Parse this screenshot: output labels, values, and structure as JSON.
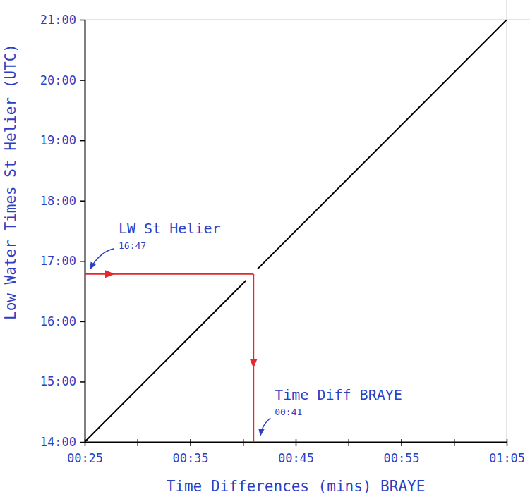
{
  "chart_data": {
    "type": "line",
    "xlabel": "Time Differences (mins) BRAYE",
    "ylabel": "Low Water Times St Helier (UTC)",
    "x": [
      25,
      40.3,
      40.9,
      41.4,
      65
    ],
    "values": [
      840,
      1000.7,
      null,
      1012.2,
      1260
    ],
    "color": "#000000",
    "xlim": [
      25,
      65
    ],
    "xticks": [
      {
        "value": 25,
        "label": "00:25"
      },
      {
        "value": 30,
        "label": null
      },
      {
        "value": 35,
        "label": "00:35"
      },
      {
        "value": 40,
        "label": null
      },
      {
        "value": 45,
        "label": "00:45"
      },
      {
        "value": 50,
        "label": null
      },
      {
        "value": 55,
        "label": "00:55"
      },
      {
        "value": 60,
        "label": null
      },
      {
        "value": 65,
        "label": "01:05"
      }
    ],
    "ylim": [
      840,
      1260
    ],
    "yticks": [
      {
        "value": 840,
        "label": "14:00"
      },
      {
        "value": 900,
        "label": "15:00"
      },
      {
        "value": 960,
        "label": "16:00"
      },
      {
        "value": 1020,
        "label": "17:00"
      },
      {
        "value": 1080,
        "label": "18:00"
      },
      {
        "value": 1140,
        "label": "19:00"
      },
      {
        "value": 1200,
        "label": "20:00"
      },
      {
        "value": 1260,
        "label": "21:00"
      }
    ],
    "annotations": [
      {
        "text": "LW St Helier",
        "value_label": "16:47",
        "y": 1007
      },
      {
        "text": "Time Diff BRAYE",
        "value_label": "00:41",
        "x": 41
      }
    ]
  }
}
